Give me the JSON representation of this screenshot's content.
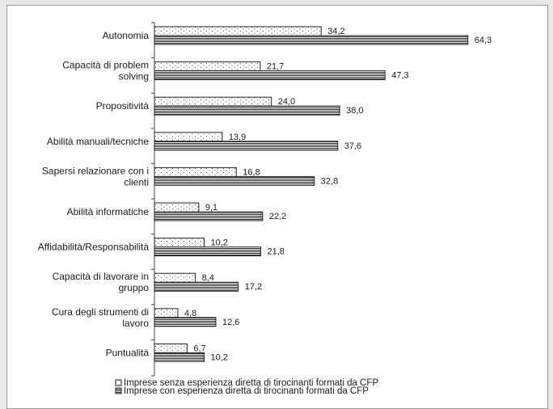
{
  "chart_data": {
    "type": "bar",
    "orientation": "horizontal",
    "categories": [
      [
        "Autonomia"
      ],
      [
        "Capacità di problem",
        "solving"
      ],
      [
        "Propositività"
      ],
      [
        "Abilità manuali/tecniche"
      ],
      [
        "Sapersi relazionare con i",
        "clienti"
      ],
      [
        "Abilità informatiche"
      ],
      [
        "Affidabilità/Responsabilità"
      ],
      [
        "Capacità di lavorare in",
        "gruppo"
      ],
      [
        "Cura degli strumenti di",
        "lavoro"
      ],
      [
        "Puntualità"
      ]
    ],
    "series": [
      {
        "name": "Imprese senza esperienza diretta di tirocinanti formati da CFP",
        "pattern": "dots",
        "values": [
          34.2,
          21.7,
          24.0,
          13.9,
          16.8,
          9.1,
          10.2,
          8.4,
          4.8,
          6.7
        ],
        "labels": [
          "34,2",
          "21,7",
          "24,0",
          "13,9",
          "16,8",
          "9,1",
          "10,2",
          "8,4",
          "4,8",
          "6,7"
        ]
      },
      {
        "name": "Imprese con esperienza diretta di tirocinanti formati da CFP",
        "pattern": "horizontal-lines",
        "values": [
          64.3,
          47.3,
          38.0,
          37.6,
          32.8,
          22.2,
          21.8,
          17.2,
          12.6,
          10.2
        ],
        "labels": [
          "64,3",
          "47,3",
          "38,0",
          "37,6",
          "32,8",
          "22,2",
          "21,8",
          "17,2",
          "12,6",
          "10,2"
        ]
      }
    ],
    "xlim": [
      0,
      70
    ],
    "grid": false,
    "legend_position": "bottom",
    "colors": {
      "bar_stroke": "#222222",
      "bar_fill": "#ffffff",
      "axis": "#444444"
    }
  }
}
